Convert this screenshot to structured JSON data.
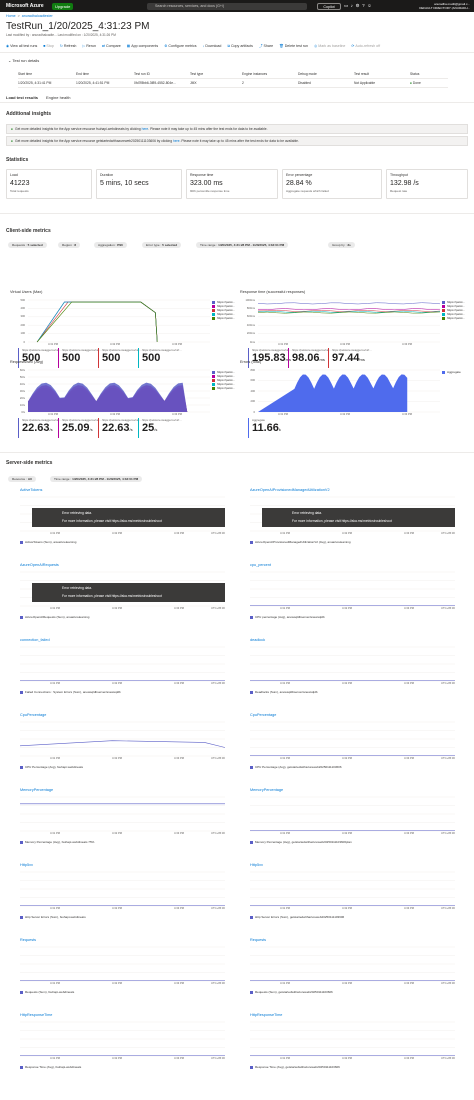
{
  "topbar": {
    "brand": "Microsoft Azure",
    "upgrade": "Upgrade",
    "search_placeholder": "Search resources, services, and docs (G+/)",
    "copilot": "Copilot",
    "account_name": "anuradha.mudit@gmail.c...",
    "account_dir": "DEFAULT DIRECTORY (ANURADH..."
  },
  "breadcrumb": [
    "Home",
    "anuradhaloadtester"
  ],
  "page": {
    "title": "TestRun_1/20/2025_4:31:23 PM",
    "subtitle": "Last modified by : anuradhaloadte... Last modified on : 1/20/2025, 4:31:26 PM"
  },
  "toolbar": [
    {
      "label": "View all test runs",
      "disabled": false
    },
    {
      "label": "Stop",
      "disabled": true
    },
    {
      "label": "Refresh",
      "disabled": false
    },
    {
      "label": "Rerun",
      "disabled": false
    },
    {
      "label": "Compare",
      "disabled": false
    },
    {
      "label": "App components",
      "disabled": false
    },
    {
      "label": "Configure metrics",
      "disabled": false
    },
    {
      "label": "Download",
      "disabled": false
    },
    {
      "label": "Copy artifacts",
      "disabled": false
    },
    {
      "label": "Share",
      "disabled": false
    },
    {
      "label": "Delete test run",
      "disabled": false
    },
    {
      "label": "Mark as baseline",
      "disabled": true
    },
    {
      "label": "Auto-refresh off",
      "disabled": true
    }
  ],
  "run_details": {
    "heading": "Test run details",
    "headers": [
      "Start time",
      "End time",
      "Test run ID",
      "Test type",
      "Engine instances",
      "Debug mode",
      "Test result",
      "Status"
    ],
    "values": [
      "1/20/2025, 4:31:41 PM",
      "1/20/2025, 4:41:51 PM",
      "0fd7f8bb6-3f89-4552-804e...",
      "JMX",
      "2",
      "Disabled",
      "Not Applicable",
      "Done"
    ]
  },
  "tabs": [
    "Load test results",
    "Engine health"
  ],
  "insights": {
    "heading": "Additional insights",
    "rows": [
      {
        "text": "Get more detailed insights for the App service resource fsuhapi-webdineats by clicking",
        "link": "here",
        "tail": ". Please note it may take up to 45 mins after the test ends for data to be available."
      },
      {
        "text": "Get more detailed insights for the App service resource getstartedwithazureweb20250111103606 by clicking",
        "link": "here",
        "tail": ". Please note it may take up to 45 mins after the test ends for data to be available."
      }
    ]
  },
  "statistics": {
    "heading": "Statistics",
    "cards": [
      {
        "label": "Load",
        "value": "41223",
        "sub": "Total requests"
      },
      {
        "label": "Duration",
        "value": "5 mins, 10 secs",
        "sub": ""
      },
      {
        "label": "Response time",
        "value": "323.00 ms",
        "sub": "90th percentile response time"
      },
      {
        "label": "Error percentage",
        "value": "28.84 %",
        "sub": "Aggregate requests which failed"
      },
      {
        "label": "Throughput",
        "value": "132.98 /s",
        "sub": "Request rate"
      }
    ]
  },
  "client": {
    "heading": "Client-side metrics",
    "filters": [
      {
        "k": "Requests :",
        "v": "5 selected"
      },
      {
        "k": "Region :",
        "v": "8"
      },
      {
        "k": "Aggregation :",
        "v": "P90"
      },
      {
        "k": "Error type :",
        "v": "5 selected"
      },
      {
        "k": "Time range :",
        "v": "1/20/2025, 4:31:28 PM - 1/20/2025, 4:32:01 PM"
      },
      {
        "k": "Group by :",
        "v": "3s"
      }
    ],
    "charts": [
      {
        "title": "Virtual Users (Max)",
        "legend": [
          "https://petst...",
          "https://petst...",
          "https://petst...",
          "https://petst...",
          "https://petst..."
        ],
        "stats": [
          {
            "n": "https://petstore.swagger.io/v2/...",
            "v": "500",
            "u": ""
          },
          {
            "n": "https://petstore.swagger.io/v2/...",
            "v": "500",
            "u": ""
          },
          {
            "n": "https://petstore.swagger.io/v2/...",
            "v": "500",
            "u": ""
          },
          {
            "n": "https://petstore.swagger.io/v2/...",
            "v": "500",
            "u": ""
          }
        ],
        "ticks": [
          "500",
          "400",
          "300",
          "200",
          "100",
          "0"
        ],
        "times": [
          "4:31 PM",
          "4:32 PM",
          "4:33 PM"
        ]
      },
      {
        "title": "Response time (successful responses)",
        "legend": [
          "https://petst...",
          "https://petst...",
          "https://petst...",
          "https://petst...",
          "https://petst..."
        ],
        "stats": [
          {
            "n": "https://petstore.swagger.io/v2/...",
            "v": "195.83",
            "u": "ms"
          },
          {
            "n": "https://petstore.swagger.io/v2/...",
            "v": "98.06",
            "u": "ms"
          },
          {
            "n": "https://petstore.swagger.io/v2/...",
            "v": "97.44",
            "u": "ms"
          }
        ],
        "ticks": [
          "1000ms",
          "800ms",
          "600ms",
          "400ms",
          "200ms",
          "0ms"
        ],
        "times": [
          "4:31 PM",
          "4:32 PM",
          "4:33 PM"
        ]
      },
      {
        "title": "Requests/sec (Avg)",
        "legend": [
          "https://petst...",
          "https://petst...",
          "https://petst...",
          "https://petst...",
          "https://petst..."
        ],
        "stats": [
          {
            "n": "https://petstore.swagger.io/v2/...",
            "v": "22.63",
            "u": "/s"
          },
          {
            "n": "https://petstore.swagger.io/v2/...",
            "v": "25.09",
            "u": "/s"
          },
          {
            "n": "https://petstore.swagger.io/v2/...",
            "v": "22.63",
            "u": "/s"
          },
          {
            "n": "https://petstore.swagger.io/v2/...",
            "v": "25",
            "u": "/s"
          }
        ],
        "ticks": [
          "60/s",
          "50/s",
          "40/s",
          "30/s",
          "20/s",
          "10/s",
          "0/s"
        ],
        "times": [
          "4:31 PM",
          "4:32 PM",
          "4:33 PM"
        ]
      },
      {
        "title": "Errors (total)",
        "legend": [
          "Aggregate"
        ],
        "stats": [
          {
            "n": "Aggregate",
            "v": "11.66",
            "u": "k"
          }
        ],
        "ticks": [
          "800",
          "600",
          "400",
          "200",
          "0"
        ],
        "times": [
          "4:31 PM",
          "4:32 PM",
          "4:33 PM"
        ]
      }
    ]
  },
  "server": {
    "heading": "Server-side metrics",
    "filters": [
      {
        "k": "Resource :",
        "v": "All"
      },
      {
        "k": "Time range :",
        "v": "1/20/2025, 4:31:28 PM - 1/20/2025, 4:32:01 PM"
      }
    ],
    "error_text": "Error retrieving data.",
    "error_more": "For more information, please visit https://aka.ms/metricstroubleshoot",
    "tz": "UTC+05:30",
    "charts": [
      {
        "title": "ActiveTokens",
        "legend": "ActiveTokens (Sum), anuazureleaming",
        "error": true
      },
      {
        "title": "AzureOpenAIProvisionedManagedUtilizationV2",
        "legend": "AzureOpenAIProvisionedManagedUtilizationV2 (Avg), anuazureleaming",
        "error": true
      },
      {
        "title": "AzureOpenAIRequests",
        "legend": "AzureOpenAIRequests (Sum), anuazureleaming",
        "error": true
      },
      {
        "title": "cpu_percent",
        "legend": "CPU percentage (Avg), anewsqldbserver/anewsqldb",
        "error": false
      },
      {
        "title": "connection_failed",
        "legend": "Failed Connections : System Errors (Sum), anewsqldbserver/anewsqldb",
        "error": false
      },
      {
        "title": "deadlock",
        "legend": "Deadlocks (Sum), anewsqldbserver/anewsqldb",
        "error": false
      },
      {
        "title": "CpuPercentage",
        "legend": "CPU Percentage (Avg), fsuhapi-webdineats",
        "error": false
      },
      {
        "title": "CpuPercentage",
        "legend": "CPU Percentage (Avg), getstartedwithazureweb20250111103606",
        "error": false
      },
      {
        "title": "MemoryPercentage",
        "legend": "Memory Percentage (Avg), fsuhapi-webdineats  75%",
        "error": false
      },
      {
        "title": "MemoryPercentage",
        "legend": "Memory Percentage (Avg), getstartedwithazureweb20250111103606plan",
        "error": false
      },
      {
        "title": "Http5xx",
        "legend": "Http Server Errors (Sum), fsuhapi-webdineats",
        "error": false
      },
      {
        "title": "Http5xx",
        "legend": "Http Server Errors (Sum), getstartedwithazureweb20250111103606",
        "error": false
      },
      {
        "title": "Requests",
        "legend": "Requests (Sum), fsuhapi-webdineats",
        "error": false
      },
      {
        "title": "Requests",
        "legend": "Requests (Sum), getstartedwithazureweb20250111103606",
        "error": false
      },
      {
        "title": "HttpResponseTime",
        "legend": "Response Time (Avg), fsuhapi-webdineats",
        "error": false
      },
      {
        "title": "HttpResponseTime",
        "legend": "Response Time (Avg), getstartedwithazureweb20250111103606",
        "error": false
      }
    ],
    "times": [
      "4:31 PM",
      "4:32 PM",
      "4:33 PM"
    ]
  },
  "colors": {
    "accent": "#0078d4",
    "series": [
      "#5b5fc7",
      "#b4009e",
      "#d13438",
      "#00b7c3",
      "#498205"
    ],
    "area": "#4f6bed",
    "success": "#107c10"
  }
}
